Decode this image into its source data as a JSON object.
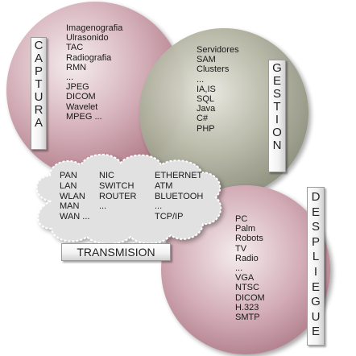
{
  "colors": {
    "captura_circle": "#c99aa6",
    "gestion_circle": "#9ea08a",
    "despliegue_circle": "#c99aa6",
    "cloud": "#dcdcdc"
  },
  "captura": {
    "label": [
      "C",
      "A",
      "P",
      "T",
      "U",
      "R",
      "A"
    ],
    "items": [
      "Imagenografia",
      "Ulrasonido",
      "TAC",
      "Radiografia",
      "RMN",
      "...",
      "JPEG",
      "DICOM",
      "Wavelet",
      "MPEG ..."
    ]
  },
  "gestion": {
    "label": [
      "G",
      "E",
      "S",
      "T",
      "I",
      "O",
      "N"
    ],
    "items": [
      "Servidores",
      "SAM",
      "Clusters",
      "...",
      "IA,IS",
      "SQL",
      "Java",
      "C#",
      "PHP"
    ]
  },
  "transmision": {
    "label": "TRANSMISION",
    "col1": [
      "PAN",
      "LAN",
      "WLAN",
      "MAN",
      "WAN ..."
    ],
    "col2": [
      "NIC",
      "SWITCH",
      "ROUTER",
      "..."
    ],
    "col3": [
      "ETHERNET",
      "ATM",
      "BLUETOOH",
      "...",
      "TCP/IP"
    ]
  },
  "despliegue": {
    "label": [
      "D",
      "E",
      "S",
      "P",
      "L",
      "I",
      "E",
      "G",
      "U",
      "E"
    ],
    "items": [
      "PC",
      "Palm",
      "Robots",
      "TV",
      "Radio",
      "...",
      "VGA",
      "NTSC",
      "DICOM",
      "H.323",
      "SMTP"
    ]
  }
}
